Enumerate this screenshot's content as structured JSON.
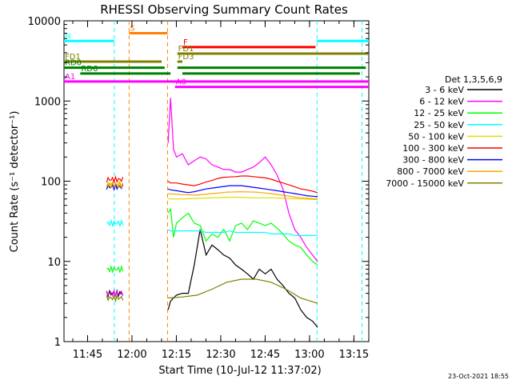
{
  "chart_data": {
    "type": "line",
    "title": "RHESSI Observing Summary Count Rates",
    "xlabel": "Start Time (10-Jul-12 11:37:02)",
    "ylabel": "Count Rate (s⁻¹ detector⁻¹)",
    "y_scale": "log",
    "ylim": [
      1,
      10000
    ],
    "xlim_minutes": [
      0,
      103
    ],
    "x_ticks": [
      {
        "label": "11:45",
        "minute": 7.97
      },
      {
        "label": "12:00",
        "minute": 22.97
      },
      {
        "label": "12:15",
        "minute": 37.97
      },
      {
        "label": "12:30",
        "minute": 52.97
      },
      {
        "label": "12:45",
        "minute": 67.97
      },
      {
        "label": "13:00",
        "minute": 82.97
      },
      {
        "label": "13:15",
        "minute": 97.97
      }
    ],
    "y_ticks": [
      {
        "label": "1",
        "value": 1
      },
      {
        "label": "10",
        "value": 10
      },
      {
        "label": "100",
        "value": 100
      },
      {
        "label": "1000",
        "value": 1000
      },
      {
        "label": "10000",
        "value": 10000
      }
    ],
    "legend_title": "Det 1,3,5,6,9",
    "legend_position": "right",
    "series": [
      {
        "name": "3 - 6 keV",
        "color": "#000000",
        "x": [
          35.2,
          36,
          37,
          38,
          40,
          42,
          44,
          46,
          48,
          50,
          52,
          54,
          56,
          58,
          60,
          62,
          64,
          66,
          68,
          70,
          72,
          74,
          76,
          78,
          80,
          82,
          84,
          85.7
        ],
        "y": [
          2.5,
          3.2,
          3.5,
          3.8,
          4,
          4,
          9,
          25,
          12,
          16,
          14,
          12,
          11,
          9,
          8,
          7,
          6,
          8,
          7,
          8,
          6,
          5,
          4,
          3.5,
          2.5,
          2,
          1.8,
          1.5
        ]
      },
      {
        "name": "6 - 12 keV",
        "color": "#ff00ff",
        "x": [
          35.2,
          36,
          37,
          38,
          40,
          42,
          44,
          46,
          48,
          50,
          52,
          54,
          56,
          58,
          60,
          62,
          64,
          66,
          68,
          70,
          72,
          74,
          76,
          78,
          80,
          82,
          84,
          85.7
        ],
        "y": [
          300,
          1100,
          250,
          200,
          220,
          160,
          180,
          200,
          190,
          160,
          150,
          140,
          140,
          130,
          130,
          140,
          150,
          170,
          200,
          160,
          120,
          80,
          40,
          25,
          20,
          15,
          12,
          10
        ]
      },
      {
        "name": "12 - 25 keV",
        "color": "#00ff00",
        "x": [
          35.2,
          36,
          37,
          38,
          40,
          42,
          44,
          46,
          48,
          50,
          52,
          54,
          56,
          58,
          60,
          62,
          64,
          66,
          68,
          70,
          72,
          74,
          76,
          78,
          80,
          82,
          84,
          85.7
        ],
        "y": [
          40,
          45,
          20,
          30,
          35,
          40,
          30,
          28,
          18,
          22,
          20,
          25,
          18,
          28,
          30,
          25,
          32,
          30,
          28,
          30,
          26,
          22,
          18,
          16,
          15,
          12,
          10,
          9
        ]
      },
      {
        "name": "25 - 50 keV",
        "color": "#00ffff",
        "x": [
          35.2,
          36,
          37,
          38,
          40,
          42,
          44,
          46,
          48,
          50,
          52,
          54,
          56,
          58,
          60,
          62,
          64,
          66,
          68,
          70,
          72,
          74,
          76,
          78,
          80,
          82,
          84,
          85.7
        ],
        "y": [
          25,
          24,
          24,
          24,
          24,
          24,
          24,
          24,
          23,
          23,
          23,
          23,
          24,
          23,
          23,
          23,
          23,
          23,
          23,
          22,
          22,
          22,
          22,
          21,
          21,
          21,
          21,
          21
        ]
      },
      {
        "name": "50 - 100 keV",
        "color": "#dddd00",
        "x": [
          35.2,
          40,
          45,
          50,
          55,
          60,
          65,
          70,
          75,
          80,
          85.7
        ],
        "y": [
          60,
          60,
          61,
          62,
          63,
          63,
          62,
          62,
          61,
          60,
          59
        ]
      },
      {
        "name": "100 - 300 keV",
        "color": "#ff0000",
        "x": [
          35.2,
          36,
          38,
          40,
          42,
          44,
          46,
          48,
          50,
          52,
          54,
          56,
          58,
          60,
          62,
          64,
          66,
          68,
          70,
          72,
          74,
          76,
          78,
          80,
          82,
          84,
          85.7
        ],
        "y": [
          100,
          95,
          95,
          92,
          90,
          88,
          92,
          98,
          102,
          108,
          112,
          113,
          114,
          116,
          116,
          114,
          112,
          110,
          106,
          100,
          95,
          90,
          85,
          80,
          78,
          75,
          72
        ]
      },
      {
        "name": "300 - 800 keV",
        "color": "#0000ff",
        "x": [
          35.2,
          36,
          38,
          40,
          42,
          44,
          46,
          48,
          50,
          52,
          54,
          56,
          58,
          60,
          62,
          64,
          66,
          68,
          70,
          72,
          74,
          76,
          78,
          80,
          82,
          84,
          85.7
        ],
        "y": [
          80,
          78,
          76,
          74,
          72,
          74,
          77,
          80,
          82,
          84,
          86,
          88,
          88,
          88,
          86,
          84,
          82,
          80,
          78,
          76,
          74,
          72,
          70,
          68,
          66,
          65,
          64
        ]
      },
      {
        "name": "800 - 7000 keV",
        "color": "#ffa500",
        "x": [
          35.2,
          40,
          45,
          50,
          55,
          60,
          65,
          70,
          75,
          80,
          85.7
        ],
        "y": [
          70,
          68,
          67,
          70,
          73,
          74,
          73,
          70,
          66,
          62,
          60
        ]
      },
      {
        "name": "7000 - 15000 keV",
        "color": "#808000",
        "x": [
          35.2,
          40,
          45,
          50,
          55,
          60,
          65,
          70,
          75,
          80,
          85.7
        ],
        "y": [
          3.5,
          3.6,
          3.8,
          4.5,
          5.5,
          6,
          6,
          5.5,
          4.5,
          3.5,
          3
        ]
      }
    ],
    "early_segment": {
      "x_range": [
        14.4,
        20
      ],
      "values": {
        "3 - 6 keV": 4,
        "6 - 12 keV": 4,
        "12 - 25 keV": 8,
        "25 - 50 keV": 30,
        "50 - 100 keV": 90,
        "100 - 300 keV": 105,
        "300 - 800 keV": 85,
        "800 - 7000 keV": 90,
        "7000 - 15000 keV": 3.5
      }
    },
    "state_bars": [
      {
        "label": "S",
        "color": "#ff8000",
        "x_start": 22.0,
        "x_end": 35.0,
        "level": 7000
      },
      {
        "label": "N",
        "color": "#00ffff",
        "x_start": 0.0,
        "x_end": 17.0,
        "level": 5600
      },
      {
        "label": "",
        "color": "#00ffff",
        "x_start": 85.5,
        "x_end": 103.0,
        "level": 5600
      },
      {
        "label": "F",
        "color": "#ff0000",
        "x_start": 40.0,
        "x_end": 85.0,
        "level": 4700
      },
      {
        "label": "FD1",
        "color": "#808000",
        "x_start": 0.0,
        "x_end": 33.0,
        "level": 3100
      },
      {
        "label": "FD1",
        "color": "#808000",
        "x_start": 38.3,
        "x_end": 103.0,
        "level": 3900
      },
      {
        "label": "FD3",
        "color": "#808000",
        "x_start": 38.3,
        "x_end": 40.0,
        "level": 3100
      },
      {
        "label": "RD0",
        "color": "#008000",
        "x_start": 0.0,
        "x_end": 34.0,
        "level": 2600
      },
      {
        "label": "",
        "color": "#008000",
        "x_start": 38.3,
        "x_end": 102.0,
        "level": 2600
      },
      {
        "label": "RD6",
        "color": "#008000",
        "x_start": 5.5,
        "x_end": 36.0,
        "level": 2200
      },
      {
        "label": "",
        "color": "#008000",
        "x_start": 40.0,
        "x_end": 100.0,
        "level": 2200
      },
      {
        "label": "A1",
        "color": "#ff00ff",
        "x_start": 0.0,
        "x_end": 103.0,
        "level": 1750
      },
      {
        "label": "A0",
        "color": "#ff00ff",
        "x_start": 37.5,
        "x_end": 103.0,
        "level": 1500
      }
    ],
    "vertical_markers": [
      {
        "color": "#00ffff",
        "minute": 17.0
      },
      {
        "color": "#ff8000",
        "minute": 22.0
      },
      {
        "color": "#ff8000",
        "minute": 35.0
      },
      {
        "color": "#00ffff",
        "minute": 85.5
      },
      {
        "color": "#00ffff",
        "minute": 100.7
      }
    ],
    "timestamp": "23-Oct-2021 18:55"
  }
}
